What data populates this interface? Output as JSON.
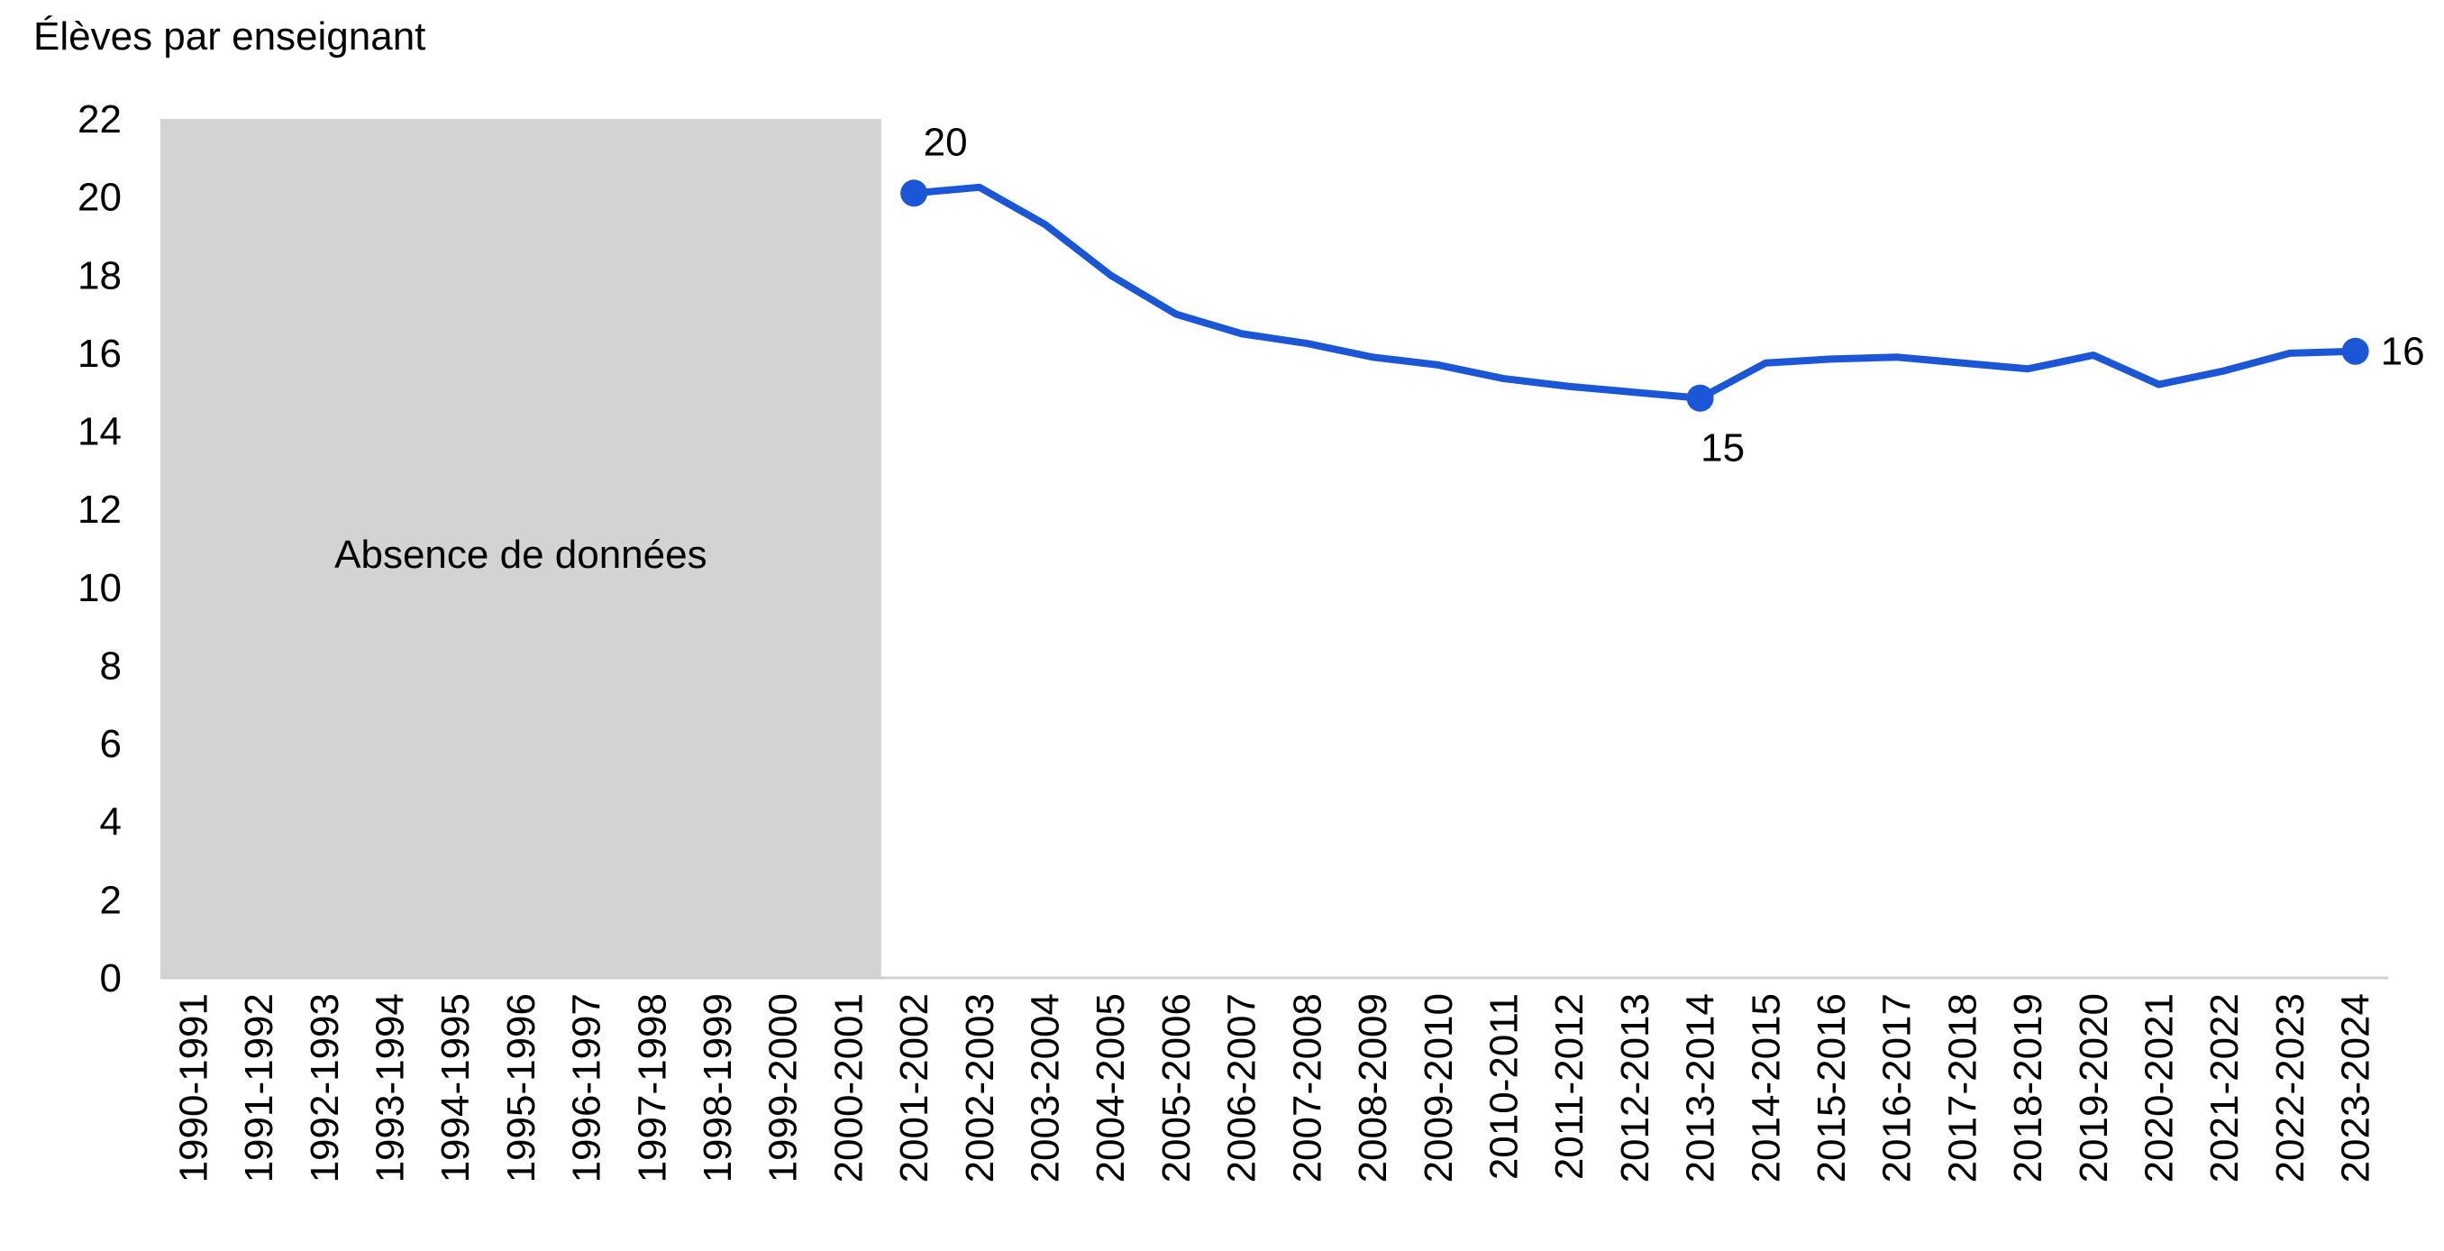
{
  "chart_data": {
    "type": "line",
    "ylabel": "Élèves par enseignant",
    "ylim": [
      0,
      22
    ],
    "yticks": [
      0,
      2,
      4,
      6,
      8,
      10,
      12,
      14,
      16,
      18,
      20,
      22
    ],
    "grid": false,
    "categories": [
      "1990-1991",
      "1991-1992",
      "1992-1993",
      "1993-1994",
      "1994-1995",
      "1995-1996",
      "1996-1997",
      "1997-1998",
      "1998-1999",
      "1999-2000",
      "2000-2001",
      "2001-2002",
      "2002-2003",
      "2003-2004",
      "2004-2005",
      "2005-2006",
      "2006-2007",
      "2007-2008",
      "2008-2009",
      "2009-2010",
      "2010-2011",
      "2011-2012",
      "2012-2013",
      "2013-2014",
      "2014-2015",
      "2015-2016",
      "2016-2017",
      "2017-2018",
      "2018-2019",
      "2019-2020",
      "2020-2021",
      "2021-2022",
      "2022-2023",
      "2023-2024"
    ],
    "series": [
      {
        "color": "#1a56d6",
        "values": [
          null,
          null,
          null,
          null,
          null,
          null,
          null,
          null,
          null,
          null,
          null,
          20.1,
          20.25,
          19.3,
          18.0,
          17.0,
          16.5,
          16.25,
          15.9,
          15.7,
          15.35,
          15.15,
          15.0,
          14.85,
          15.75,
          15.85,
          15.9,
          15.75,
          15.6,
          15.95,
          15.2,
          15.55,
          16.0,
          16.05
        ]
      }
    ],
    "data_labels": [
      {
        "category": "2001-2002",
        "text": "20"
      },
      {
        "category": "2013-2014",
        "text": "15"
      },
      {
        "category": "2023-2024",
        "text": "16"
      }
    ],
    "missing_region": {
      "from": "1990-1991",
      "to": "2000-2001",
      "label": "Absence de données",
      "color": "#d3d3d3"
    }
  }
}
